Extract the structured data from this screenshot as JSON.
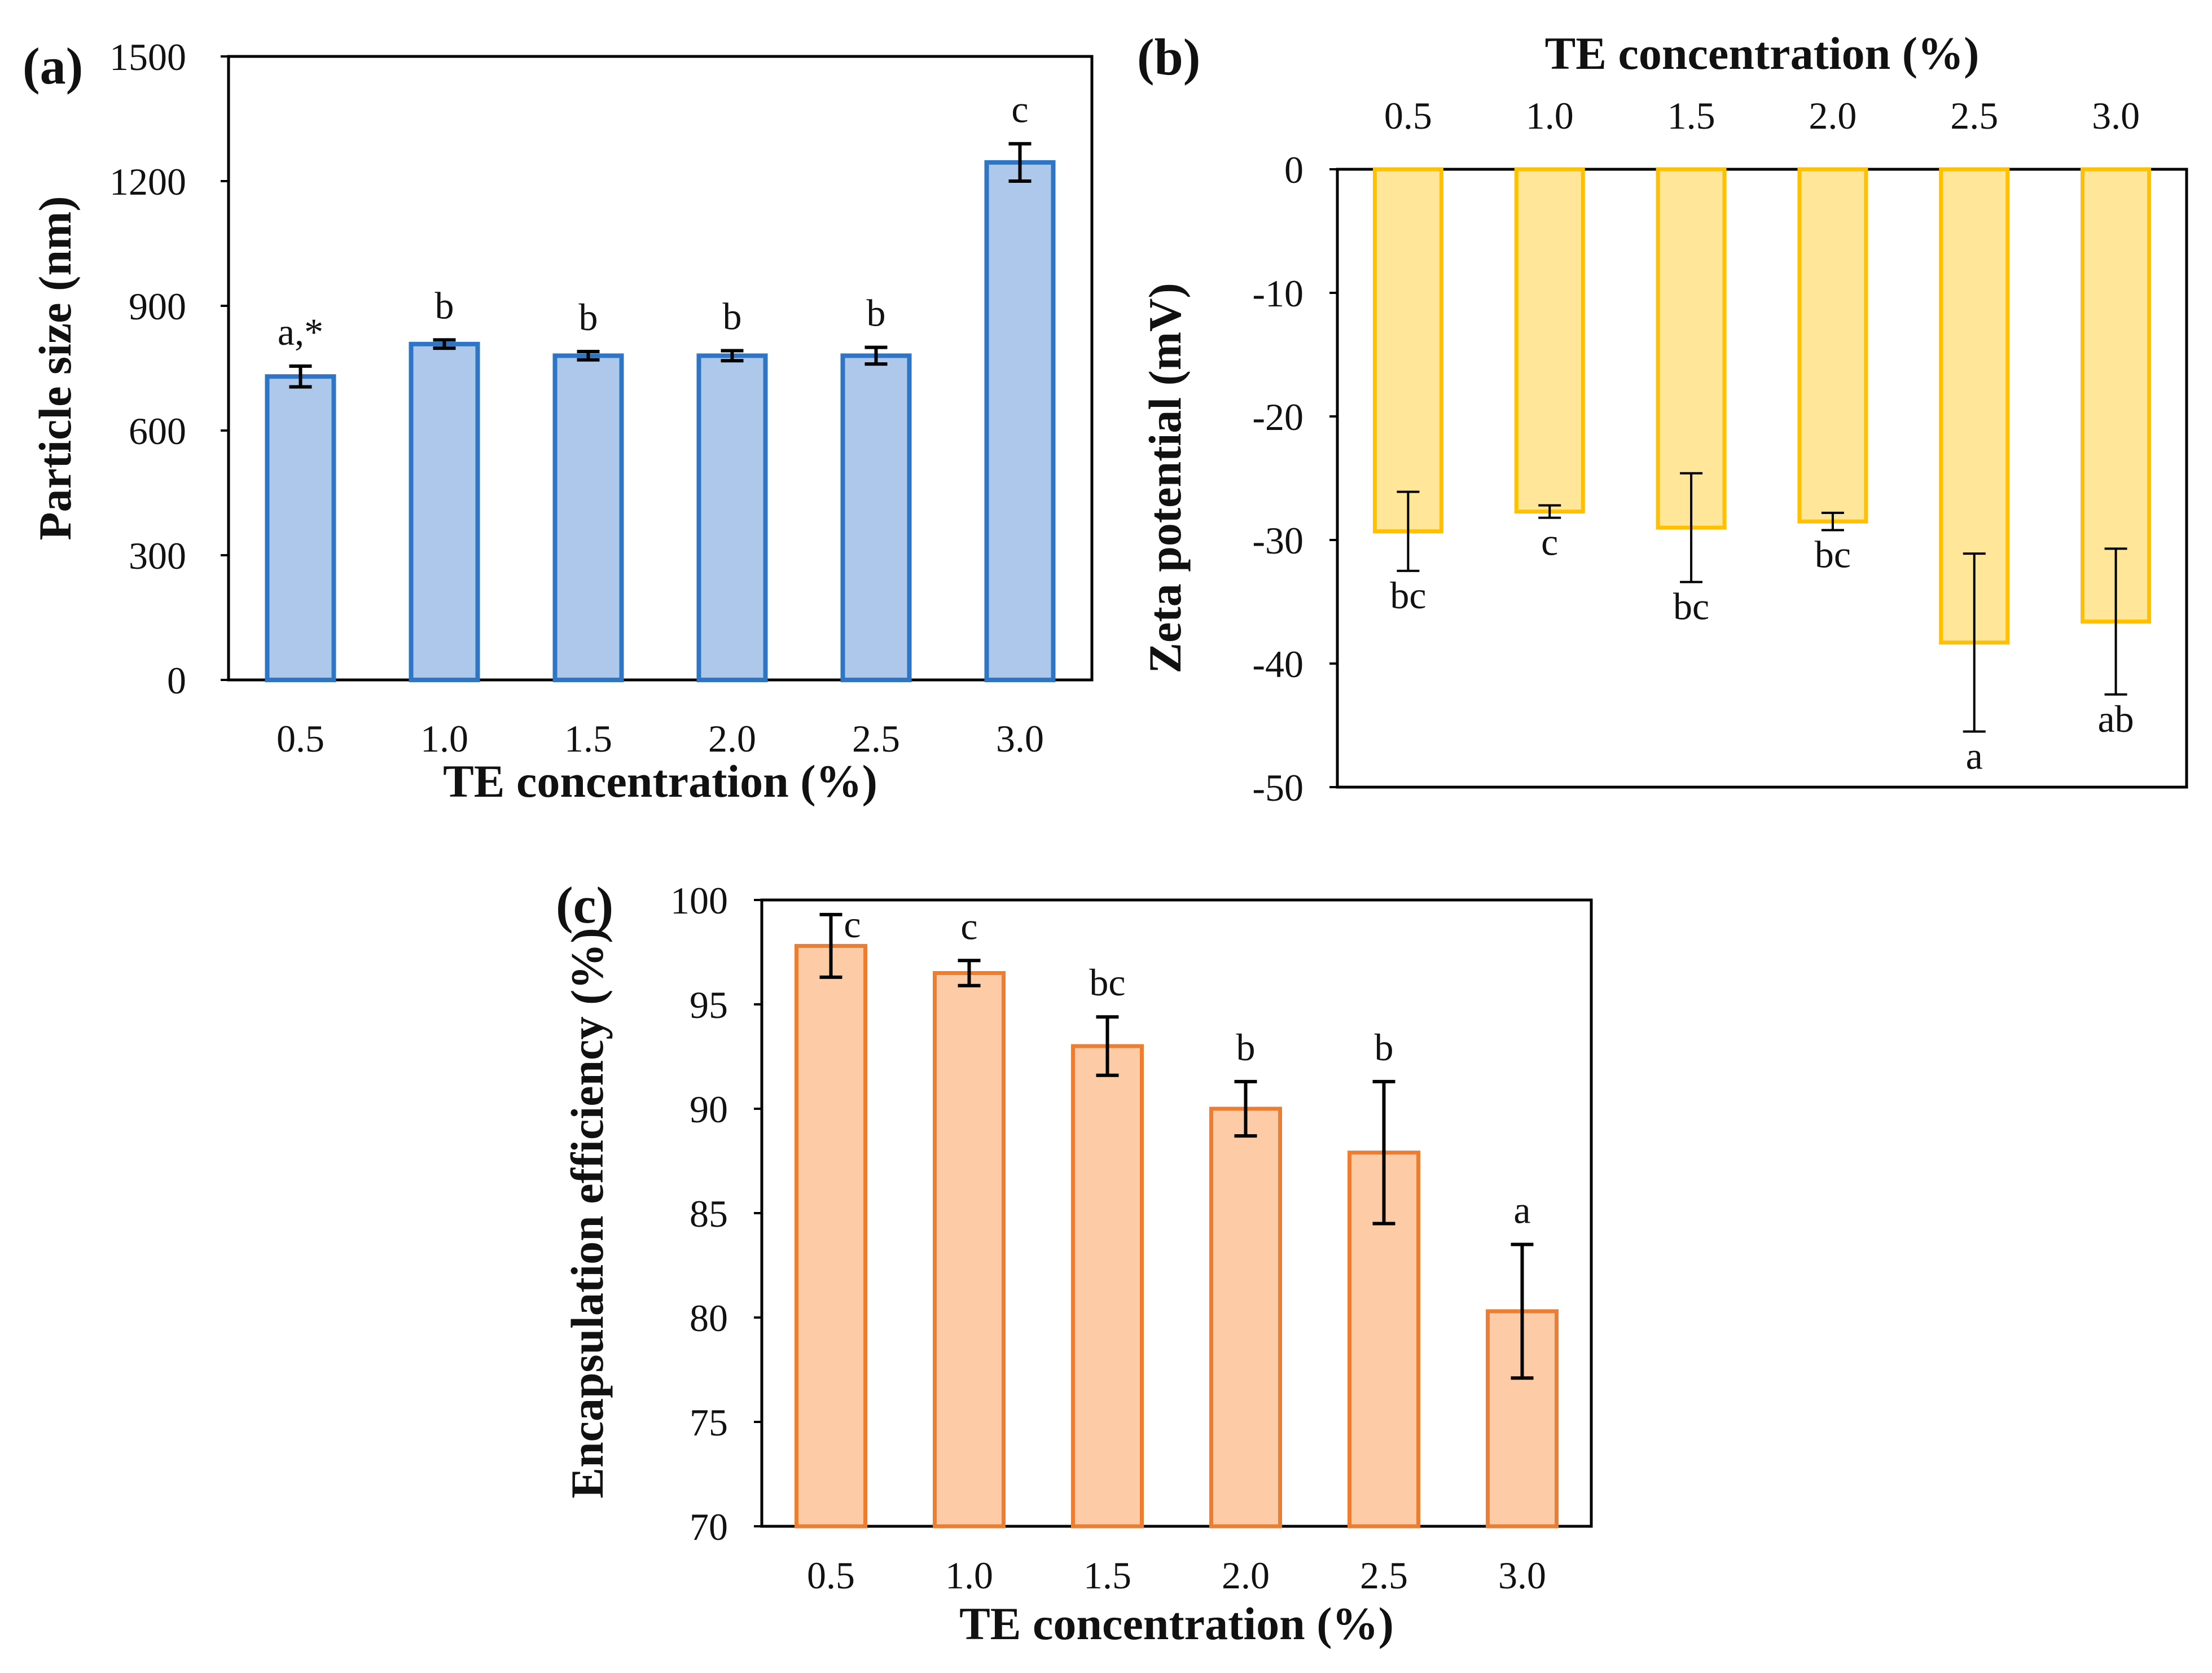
{
  "chart_data": [
    {
      "panel": "(a)",
      "type": "bar",
      "categories": [
        "0.5",
        "1.0",
        "1.5",
        "2.0",
        "2.5",
        "3.0"
      ],
      "values": [
        730,
        808,
        780,
        780,
        780,
        1245
      ],
      "errors": [
        25,
        10,
        10,
        12,
        20,
        45
      ],
      "labels": [
        "a,*",
        "b",
        "b",
        "b",
        "b",
        "c"
      ],
      "xlabel": "TE concentration (%)",
      "ylabel": "Particle size (nm)",
      "ylim": [
        0,
        1500
      ],
      "yticks": [
        0,
        300,
        600,
        900,
        1200,
        1500
      ],
      "color_fill": "#adc8ea",
      "color_edge": "#2e75c6"
    },
    {
      "panel": "(b)",
      "type": "bar",
      "categories": [
        "0.5",
        "1.0",
        "1.5",
        "2.0",
        "2.5",
        "3.0"
      ],
      "values": [
        -29.3,
        -27.7,
        -29.0,
        -28.5,
        -38.3,
        -36.6
      ],
      "errors": [
        3.2,
        0.5,
        4.4,
        0.7,
        7.2,
        5.9
      ],
      "labels": [
        "bc",
        "c",
        "bc",
        "bc",
        "a",
        "ab"
      ],
      "xlabel": "TE concentration (%)",
      "ylabel": "Zeta potential (mV)",
      "ylim": [
        -50,
        0
      ],
      "yticks": [
        0,
        -10,
        -20,
        -30,
        -40,
        -50
      ],
      "xaxis_position": "top",
      "color_fill": "#ffe699",
      "color_edge": "#ffc000"
    },
    {
      "panel": "(c)",
      "type": "bar",
      "categories": [
        "0.5",
        "1.0",
        "1.5",
        "2.0",
        "2.5",
        "3.0"
      ],
      "values": [
        97.8,
        96.5,
        93.0,
        90.0,
        87.9,
        80.3
      ],
      "errors": [
        1.5,
        0.6,
        1.4,
        1.3,
        3.4,
        3.2
      ],
      "labels": [
        "c",
        "c",
        "bc",
        "b",
        "b",
        "a"
      ],
      "xlabel": "TE concentration (%)",
      "ylabel": "Encapsulation efficiency (%)",
      "ylim": [
        70,
        100
      ],
      "yticks": [
        70,
        75,
        80,
        85,
        90,
        95,
        100
      ],
      "color_fill": "#fdcba6",
      "color_edge": "#ed7d31"
    }
  ]
}
